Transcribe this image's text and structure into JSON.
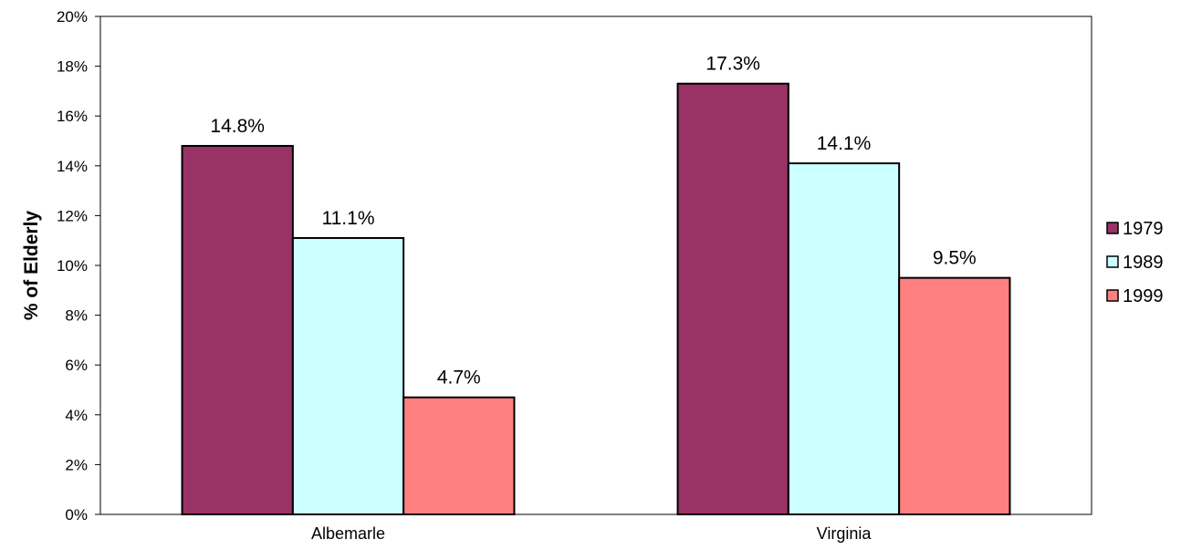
{
  "chart_data": {
    "type": "bar",
    "title": "",
    "xlabel": "",
    "ylabel": "% of Elderly",
    "categories": [
      "Albemarle",
      "Virginia"
    ],
    "series": [
      {
        "name": "1979",
        "values": [
          14.8,
          17.3
        ],
        "color": "#993366"
      },
      {
        "name": "1989",
        "values": [
          11.1,
          14.1
        ],
        "color": "#CCFFFF"
      },
      {
        "name": "1999",
        "values": [
          4.7,
          9.5
        ],
        "color": "#FF8080"
      }
    ],
    "data_labels": [
      [
        "14.8%",
        "17.3%"
      ],
      [
        "11.1%",
        "14.1%"
      ],
      [
        "4.7%",
        "9.5%"
      ]
    ],
    "ylim": [
      0,
      20
    ],
    "yticks": [
      0,
      2,
      4,
      6,
      8,
      10,
      12,
      14,
      16,
      18,
      20
    ],
    "ytick_labels": [
      "0%",
      "2%",
      "4%",
      "6%",
      "8%",
      "10%",
      "12%",
      "14%",
      "16%",
      "18%",
      "20%"
    ],
    "grid": false,
    "legend": "right"
  }
}
